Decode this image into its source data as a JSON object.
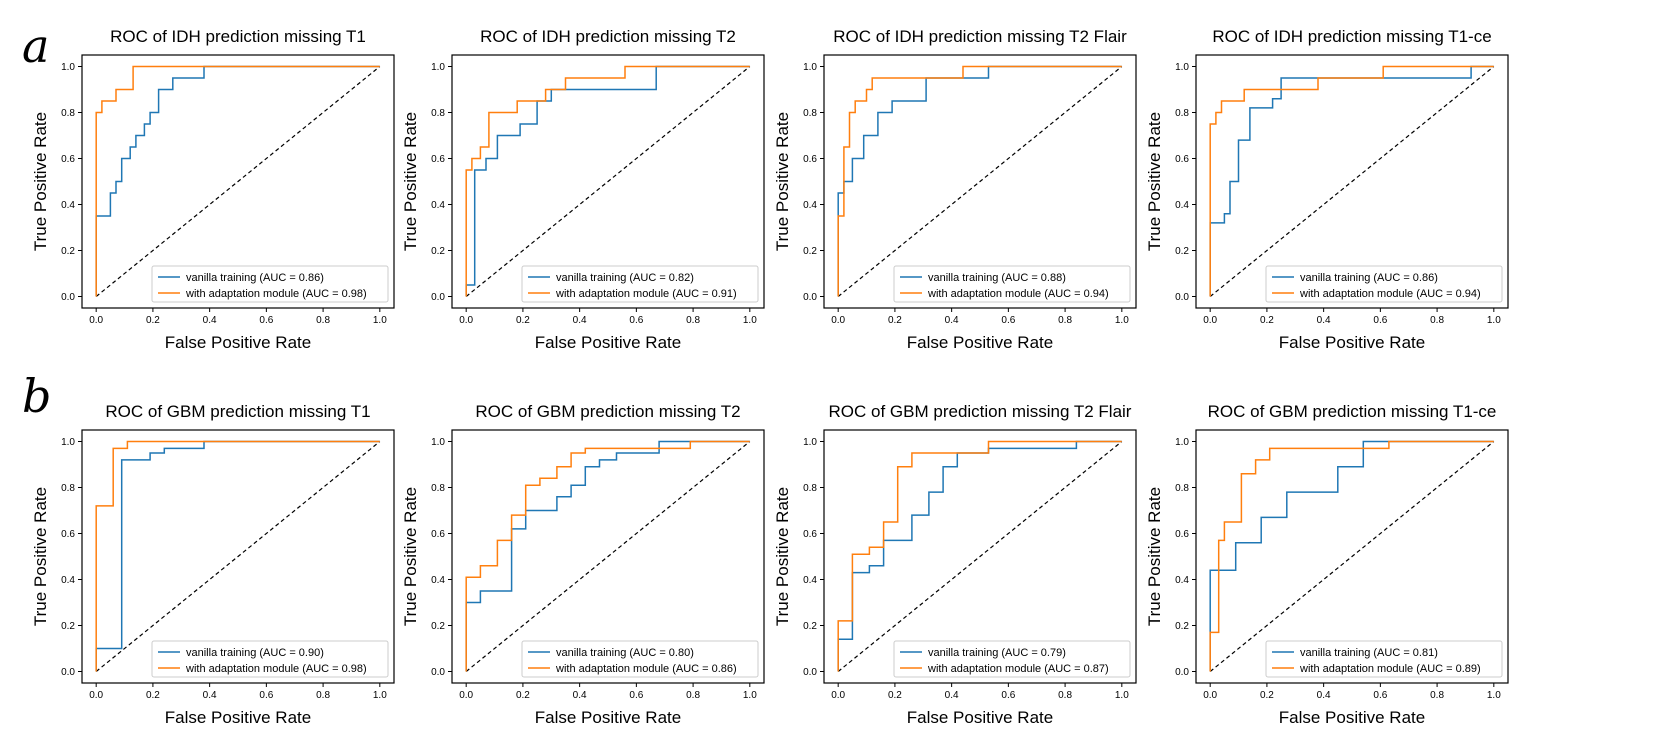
{
  "rows": [
    {
      "letter": "a",
      "name": "IDH"
    },
    {
      "letter": "b",
      "name": "GBM"
    }
  ],
  "colors": {
    "vanilla": "#1f77b4",
    "adapted": "#ff7f0e",
    "chance": "#000000",
    "axis": "#000000"
  },
  "chart_data": [
    {
      "type": "line",
      "title": "ROC of IDH prediction missing T1",
      "xlabel": "False Positive Rate",
      "ylabel": "True Positive Rate",
      "xlim": [
        -0.05,
        1.05
      ],
      "ylim": [
        -0.05,
        1.05
      ],
      "x_ticks": [
        "0.0",
        "0.2",
        "0.4",
        "0.6",
        "0.8",
        "1.0"
      ],
      "y_ticks": [
        "0.0",
        "0.2",
        "0.4",
        "0.6",
        "0.8",
        "1.0"
      ],
      "legend_position": "lower right",
      "series": [
        {
          "name": "vanilla training (AUC = 0.86)",
          "key": "vanilla",
          "x": [
            0,
            0,
            0.05,
            0.05,
            0.07,
            0.07,
            0.09,
            0.09,
            0.12,
            0.12,
            0.14,
            0.14,
            0.17,
            0.17,
            0.19,
            0.19,
            0.22,
            0.22,
            0.27,
            0.27,
            0.38,
            0.38,
            1
          ],
          "y": [
            0,
            0.35,
            0.35,
            0.45,
            0.45,
            0.5,
            0.5,
            0.6,
            0.6,
            0.65,
            0.65,
            0.7,
            0.7,
            0.75,
            0.75,
            0.8,
            0.8,
            0.9,
            0.9,
            0.95,
            0.95,
            1,
            1
          ]
        },
        {
          "name": "with adaptation module (AUC = 0.98)",
          "key": "adapted",
          "x": [
            0,
            0,
            0.02,
            0.02,
            0.07,
            0.07,
            0.13,
            0.13,
            1
          ],
          "y": [
            0,
            0.8,
            0.8,
            0.85,
            0.85,
            0.9,
            0.9,
            1,
            1
          ]
        }
      ]
    },
    {
      "type": "line",
      "title": "ROC of IDH prediction missing T2",
      "xlabel": "False Positive Rate",
      "ylabel": "True Positive Rate",
      "xlim": [
        -0.05,
        1.05
      ],
      "ylim": [
        -0.05,
        1.05
      ],
      "x_ticks": [
        "0.0",
        "0.2",
        "0.4",
        "0.6",
        "0.8",
        "1.0"
      ],
      "y_ticks": [
        "0.0",
        "0.2",
        "0.4",
        "0.6",
        "0.8",
        "1.0"
      ],
      "legend_position": "lower right",
      "series": [
        {
          "name": "vanilla training (AUC = 0.82)",
          "key": "vanilla",
          "x": [
            0,
            0,
            0.03,
            0.03,
            0.07,
            0.07,
            0.11,
            0.11,
            0.19,
            0.19,
            0.25,
            0.25,
            0.3,
            0.3,
            0.45,
            0.45,
            0.67,
            0.67,
            1
          ],
          "y": [
            0,
            0.05,
            0.05,
            0.55,
            0.55,
            0.6,
            0.6,
            0.7,
            0.7,
            0.75,
            0.75,
            0.85,
            0.85,
            0.9,
            0.9,
            0.9,
            0.9,
            1,
            1
          ]
        },
        {
          "name": "with adaptation module (AUC = 0.91)",
          "key": "adapted",
          "x": [
            0,
            0,
            0.02,
            0.02,
            0.05,
            0.05,
            0.08,
            0.08,
            0.18,
            0.18,
            0.28,
            0.28,
            0.35,
            0.35,
            0.56,
            0.56,
            1
          ],
          "y": [
            0,
            0.55,
            0.55,
            0.6,
            0.6,
            0.65,
            0.65,
            0.8,
            0.8,
            0.85,
            0.85,
            0.9,
            0.9,
            0.95,
            0.95,
            1,
            1
          ]
        }
      ]
    },
    {
      "type": "line",
      "title": "ROC of IDH prediction missing T2 Flair",
      "xlabel": "False Positive Rate",
      "ylabel": "True Positive Rate",
      "xlim": [
        -0.05,
        1.05
      ],
      "ylim": [
        -0.05,
        1.05
      ],
      "x_ticks": [
        "0.0",
        "0.2",
        "0.4",
        "0.6",
        "0.8",
        "1.0"
      ],
      "y_ticks": [
        "0.0",
        "0.2",
        "0.4",
        "0.6",
        "0.8",
        "1.0"
      ],
      "legend_position": "lower right",
      "series": [
        {
          "name": "vanilla training (AUC = 0.88)",
          "key": "vanilla",
          "x": [
            0,
            0,
            0.02,
            0.02,
            0.05,
            0.05,
            0.09,
            0.09,
            0.14,
            0.14,
            0.19,
            0.19,
            0.31,
            0.31,
            0.53,
            0.53,
            1
          ],
          "y": [
            0,
            0.45,
            0.45,
            0.5,
            0.5,
            0.6,
            0.6,
            0.7,
            0.7,
            0.8,
            0.8,
            0.85,
            0.85,
            0.95,
            0.95,
            1,
            1
          ]
        },
        {
          "name": "with adaptation module (AUC = 0.94)",
          "key": "adapted",
          "x": [
            0,
            0,
            0.02,
            0.02,
            0.04,
            0.04,
            0.06,
            0.06,
            0.1,
            0.1,
            0.12,
            0.12,
            0.17,
            0.17,
            0.44,
            0.44,
            1
          ],
          "y": [
            0,
            0.35,
            0.35,
            0.65,
            0.65,
            0.8,
            0.8,
            0.85,
            0.85,
            0.9,
            0.9,
            0.95,
            0.95,
            0.95,
            0.95,
            1,
            1
          ]
        }
      ]
    },
    {
      "type": "line",
      "title": "ROC of IDH prediction missing T1-ce",
      "xlabel": "False Positive Rate",
      "ylabel": "True Positive Rate",
      "xlim": [
        -0.05,
        1.05
      ],
      "ylim": [
        -0.05,
        1.05
      ],
      "x_ticks": [
        "0.0",
        "0.2",
        "0.4",
        "0.6",
        "0.8",
        "1.0"
      ],
      "y_ticks": [
        "0.0",
        "0.2",
        "0.4",
        "0.6",
        "0.8",
        "1.0"
      ],
      "legend_position": "lower right",
      "series": [
        {
          "name": "vanilla training (AUC = 0.86)",
          "key": "vanilla",
          "x": [
            0,
            0,
            0.05,
            0.05,
            0.07,
            0.07,
            0.1,
            0.1,
            0.14,
            0.14,
            0.22,
            0.22,
            0.25,
            0.25,
            0.27,
            0.27,
            0.38,
            0.38,
            0.92,
            0.92,
            1
          ],
          "y": [
            0,
            0.32,
            0.32,
            0.36,
            0.36,
            0.5,
            0.5,
            0.68,
            0.68,
            0.82,
            0.82,
            0.86,
            0.86,
            0.95,
            0.95,
            0.95,
            0.95,
            0.95,
            0.95,
            1,
            1
          ]
        },
        {
          "name": "with adaptation module (AUC = 0.94)",
          "key": "adapted",
          "x": [
            0,
            0,
            0.02,
            0.02,
            0.04,
            0.04,
            0.07,
            0.07,
            0.12,
            0.12,
            0.27,
            0.27,
            0.38,
            0.38,
            0.61,
            0.61,
            1
          ],
          "y": [
            0,
            0.75,
            0.75,
            0.8,
            0.8,
            0.85,
            0.85,
            0.85,
            0.85,
            0.9,
            0.9,
            0.9,
            0.9,
            0.95,
            0.95,
            1,
            1
          ]
        }
      ]
    },
    {
      "type": "line",
      "title": "ROC of GBM prediction missing T1",
      "xlabel": "False Positive Rate",
      "ylabel": "True Positive Rate",
      "xlim": [
        -0.05,
        1.05
      ],
      "ylim": [
        -0.05,
        1.05
      ],
      "x_ticks": [
        "0.0",
        "0.2",
        "0.4",
        "0.6",
        "0.8",
        "1.0"
      ],
      "y_ticks": [
        "0.0",
        "0.2",
        "0.4",
        "0.6",
        "0.8",
        "1.0"
      ],
      "legend_position": "lower right",
      "series": [
        {
          "name": "vanilla training (AUC = 0.90)",
          "key": "vanilla",
          "x": [
            0,
            0,
            0.09,
            0.09,
            0.19,
            0.19,
            0.24,
            0.24,
            0.38,
            0.38,
            1
          ],
          "y": [
            0,
            0.1,
            0.1,
            0.92,
            0.92,
            0.95,
            0.95,
            0.97,
            0.97,
            1,
            1
          ]
        },
        {
          "name": "with adaptation module (AUC = 0.98)",
          "key": "adapted",
          "x": [
            0,
            0,
            0.06,
            0.06,
            0.11,
            0.11,
            1
          ],
          "y": [
            0,
            0.72,
            0.72,
            0.97,
            0.97,
            1,
            1
          ]
        }
      ]
    },
    {
      "type": "line",
      "title": "ROC of GBM prediction missing T2",
      "xlabel": "False Positive Rate",
      "ylabel": "True Positive Rate",
      "xlim": [
        -0.05,
        1.05
      ],
      "ylim": [
        -0.05,
        1.05
      ],
      "x_ticks": [
        "0.0",
        "0.2",
        "0.4",
        "0.6",
        "0.8",
        "1.0"
      ],
      "y_ticks": [
        "0.0",
        "0.2",
        "0.4",
        "0.6",
        "0.8",
        "1.0"
      ],
      "legend_position": "lower right",
      "series": [
        {
          "name": "vanilla training (AUC = 0.80)",
          "key": "vanilla",
          "x": [
            0,
            0,
            0.05,
            0.05,
            0.16,
            0.16,
            0.21,
            0.21,
            0.32,
            0.32,
            0.37,
            0.37,
            0.42,
            0.42,
            0.47,
            0.47,
            0.53,
            0.53,
            0.68,
            0.68,
            0.79,
            0.79,
            1
          ],
          "y": [
            0,
            0.3,
            0.3,
            0.35,
            0.35,
            0.62,
            0.62,
            0.7,
            0.7,
            0.76,
            0.76,
            0.81,
            0.81,
            0.89,
            0.89,
            0.92,
            0.92,
            0.95,
            0.95,
            1,
            1,
            1,
            1
          ]
        },
        {
          "name": "with adaptation module (AUC = 0.86)",
          "key": "adapted",
          "x": [
            0,
            0,
            0.05,
            0.05,
            0.11,
            0.11,
            0.16,
            0.16,
            0.21,
            0.21,
            0.26,
            0.26,
            0.32,
            0.32,
            0.37,
            0.37,
            0.42,
            0.42,
            0.79,
            0.79,
            1
          ],
          "y": [
            0,
            0.41,
            0.41,
            0.46,
            0.46,
            0.57,
            0.57,
            0.68,
            0.68,
            0.81,
            0.81,
            0.84,
            0.84,
            0.89,
            0.89,
            0.95,
            0.95,
            0.97,
            0.97,
            1,
            1
          ]
        }
      ]
    },
    {
      "type": "line",
      "title": "ROC of GBM prediction missing T2 Flair",
      "xlabel": "False Positive Rate",
      "ylabel": "True Positive Rate",
      "xlim": [
        -0.05,
        1.05
      ],
      "ylim": [
        -0.05,
        1.05
      ],
      "x_ticks": [
        "0.0",
        "0.2",
        "0.4",
        "0.6",
        "0.8",
        "1.0"
      ],
      "y_ticks": [
        "0.0",
        "0.2",
        "0.4",
        "0.6",
        "0.8",
        "1.0"
      ],
      "legend_position": "lower right",
      "series": [
        {
          "name": "vanilla training (AUC = 0.79)",
          "key": "vanilla",
          "x": [
            0,
            0,
            0.05,
            0.05,
            0.11,
            0.11,
            0.16,
            0.16,
            0.26,
            0.26,
            0.32,
            0.32,
            0.37,
            0.37,
            0.42,
            0.42,
            0.53,
            0.53,
            0.84,
            0.84,
            1
          ],
          "y": [
            0,
            0.14,
            0.14,
            0.43,
            0.43,
            0.46,
            0.46,
            0.57,
            0.57,
            0.68,
            0.68,
            0.78,
            0.78,
            0.89,
            0.89,
            0.95,
            0.95,
            0.97,
            0.97,
            1,
            1
          ]
        },
        {
          "name": "with adaptation module (AUC = 0.87)",
          "key": "adapted",
          "x": [
            0,
            0,
            0.05,
            0.05,
            0.11,
            0.11,
            0.16,
            0.16,
            0.21,
            0.21,
            0.26,
            0.26,
            0.53,
            0.53,
            1
          ],
          "y": [
            0,
            0.22,
            0.22,
            0.51,
            0.51,
            0.54,
            0.54,
            0.65,
            0.65,
            0.89,
            0.89,
            0.95,
            0.95,
            1,
            1
          ]
        }
      ]
    },
    {
      "type": "line",
      "title": "ROC of GBM prediction missing T1-ce",
      "xlabel": "False Positive Rate",
      "ylabel": "True Positive Rate",
      "xlim": [
        -0.05,
        1.05
      ],
      "ylim": [
        -0.05,
        1.05
      ],
      "x_ticks": [
        "0.0",
        "0.2",
        "0.4",
        "0.6",
        "0.8",
        "1.0"
      ],
      "y_ticks": [
        "0.0",
        "0.2",
        "0.4",
        "0.6",
        "0.8",
        "1.0"
      ],
      "legend_position": "lower right",
      "series": [
        {
          "name": "vanilla training (AUC = 0.81)",
          "key": "vanilla",
          "x": [
            0,
            0,
            0.09,
            0.09,
            0.18,
            0.18,
            0.27,
            0.27,
            0.45,
            0.45,
            0.54,
            0.54,
            0.63,
            0.63,
            1
          ],
          "y": [
            0,
            0.44,
            0.44,
            0.56,
            0.56,
            0.67,
            0.67,
            0.78,
            0.78,
            0.89,
            0.89,
            1,
            1,
            1,
            1
          ]
        },
        {
          "name": "with adaptation module (AUC = 0.89)",
          "key": "adapted",
          "x": [
            0,
            0,
            0.03,
            0.03,
            0.05,
            0.05,
            0.11,
            0.11,
            0.16,
            0.16,
            0.21,
            0.21,
            0.24,
            0.24,
            0.63,
            0.63,
            1
          ],
          "y": [
            0,
            0.17,
            0.17,
            0.57,
            0.57,
            0.65,
            0.65,
            0.86,
            0.86,
            0.92,
            0.92,
            0.97,
            0.97,
            0.97,
            0.97,
            1,
            1
          ]
        }
      ]
    }
  ]
}
